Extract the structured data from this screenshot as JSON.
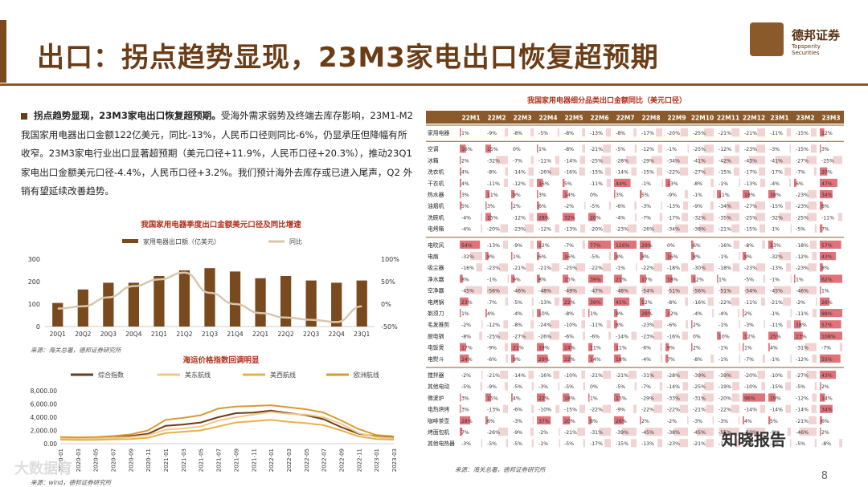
{
  "title": "出口：拐点趋势显现，23M3家电出口恢复超预期",
  "logo": {
    "name": "德邦证券",
    "sub": "Topsperity Securities"
  },
  "paragraph": {
    "lead": "拐点趋势显现，23M3家电出口恢复超预期。",
    "body": "受海外需求弱势及终端去库存影响，23M1-M2 我国家用电器出口金额122亿美元，同比-13%，人民币口径则同比-6%，仍显承压但降幅有所收窄。23M3家电行业出口显著超预期（美元口径+11.9%，人民币口径+20.3%），推动23Q1家电出口金额美元口径-4.4%，人民币口径+3.2%。我们预计海外去库存或已进入尾声，Q2 外销有望延续改善趋势。"
  },
  "chart1": {
    "title": "我国家用电器季度出口金额美元口径及同比增速",
    "legend": [
      "家用电器出口额（亿美元）",
      "同比"
    ],
    "source": "来源：海关总署，德邦证券研究所"
  },
  "chart_data": [
    {
      "type": "bar",
      "title": "我国家用电器季度出口金额美元口径及同比增速",
      "categories": [
        "20Q1",
        "20Q2",
        "20Q3",
        "20Q4",
        "21Q1",
        "21Q2",
        "21Q3",
        "21Q4",
        "22Q1",
        "22Q2",
        "22Q3",
        "22Q4",
        "23Q1"
      ],
      "series": [
        {
          "name": "家用电器出口额（亿美元）",
          "type": "bar",
          "values": [
            105,
            165,
            195,
            195,
            225,
            250,
            260,
            245,
            215,
            225,
            205,
            195,
            205
          ]
        },
        {
          "name": "同比",
          "type": "line",
          "axis": "right",
          "values": [
            -10,
            -5,
            15,
            40,
            55,
            70,
            25,
            0,
            -20,
            -30,
            -35,
            -40,
            -5
          ]
        }
      ],
      "ylim": [
        0,
        300
      ],
      "y2lim": [
        -50,
        100
      ],
      "yticks": [
        "0",
        "50",
        "100",
        "150",
        "200",
        "250",
        "300"
      ],
      "y2ticks": [
        "-50%",
        "0%",
        "50%",
        "100%"
      ]
    },
    {
      "type": "line",
      "title": "海运价格指数回调明显",
      "x": [
        "2020-01",
        "2020-03",
        "2020-05",
        "2020-07",
        "2020-09",
        "2020-11",
        "2021-01",
        "2021-03",
        "2021-05",
        "2021-07",
        "2021-09",
        "2021-11",
        "2022-01",
        "2022-03",
        "2022-05",
        "2022-07",
        "2022-09",
        "2022-11",
        "2023-01",
        "2023-03"
      ],
      "series": [
        {
          "name": "综合指数",
          "values": [
            900,
            850,
            900,
            1000,
            1150,
            1500,
            2700,
            2900,
            3200,
            4000,
            4600,
            4700,
            5000,
            4600,
            4300,
            3700,
            2500,
            1500,
            1100,
            950
          ]
        },
        {
          "name": "美东航线",
          "values": [
            800,
            750,
            800,
            900,
            1000,
            1300,
            2100,
            2300,
            2600,
            3500,
            4000,
            4400,
            4800,
            4500,
            4400,
            4000,
            3000,
            1600,
            1000,
            800
          ]
        },
        {
          "name": "美西航线",
          "values": [
            600,
            560,
            580,
            650,
            700,
            900,
            1600,
            1800,
            2000,
            2600,
            3200,
            3400,
            3600,
            3300,
            3100,
            2800,
            2000,
            1100,
            700,
            600
          ]
        },
        {
          "name": "欧洲航线",
          "values": [
            1000,
            950,
            1000,
            1150,
            1400,
            2000,
            3600,
            3900,
            4300,
            5300,
            5600,
            5700,
            5800,
            5500,
            5200,
            4700,
            3500,
            2200,
            1300,
            1100
          ]
        }
      ],
      "ylim": [
        0,
        8000
      ],
      "yticks": [
        "0.00",
        "1,000.00",
        "2,000.00",
        "3,000.00",
        "4,000.00",
        "5,000.00",
        "6,000.00",
        "7,000.00",
        "8,000.00"
      ],
      "source": "来源：wind，德邦证券研究所"
    }
  ],
  "chart2": {
    "title": "海运价格指数回调明显",
    "legend": [
      "综合指数",
      "美东航线",
      "美西航线",
      "欧洲航线"
    ],
    "xticks": [
      "2020-01",
      "2020-03",
      "2020-05",
      "2020-07",
      "2020-09",
      "2020-11",
      "2021-01",
      "2021-03",
      "2021-05",
      "2021-07",
      "2021-09",
      "2021-11",
      "2022-01",
      "2022-03",
      "2022-05",
      "2022-07",
      "2022-09",
      "2022-11",
      "2023-01",
      "2023-03"
    ],
    "source": "来源：wind，德邦证券研究所"
  },
  "table": {
    "title": "我国家用电器细分品类出口金额同比（美元口径）",
    "columns": [
      "22M1",
      "22M2",
      "22M3",
      "22M4",
      "22M5",
      "22M6",
      "22M7",
      "22M8",
      "22M9",
      "22M10",
      "22M11",
      "22M12",
      "23M1",
      "23M2",
      "23M3"
    ],
    "groups": [
      {
        "rows": [
          {
            "label": "家用电器",
            "values": [
              "1%",
              "-9%",
              "-8%",
              "-5%",
              "-8%",
              "-13%",
              "-8%",
              "-17%",
              "-20%",
              "-25%",
              "-21%",
              "-21%",
              "-11%",
              "-15%",
              "12%"
            ]
          }
        ]
      },
      {
        "rows": [
          {
            "label": "空调",
            "values": [
              "16%",
              "15%",
              "0%",
              "1%",
              "-8%",
              "-21%",
              "-5%",
              "-12%",
              "-1%",
              "-25%",
              "-12%",
              "-23%",
              "-3%",
              "-15%",
              "3%"
            ]
          },
          {
            "label": "冰箱",
            "values": [
              "2%",
              "-32%",
              "-7%",
              "-11%",
              "-14%",
              "-25%",
              "-28%",
              "-29%",
              "-34%",
              "-41%",
              "-42%",
              "-43%",
              "-41%",
              "-27%",
              "-25%"
            ]
          },
          {
            "label": "洗衣机",
            "values": [
              "4%",
              "-8%",
              "-14%",
              "-26%",
              "-16%",
              "-15%",
              "-14%",
              "-15%",
              "-22%",
              "-27%",
              "-15%",
              "-17%",
              "-17%",
              "-7%",
              "20%"
            ]
          },
          {
            "label": "干衣机",
            "values": [
              "4%",
              "-11%",
              "-12%",
              "16%",
              "5%",
              "-11%",
              "44%",
              "-1%",
              "13%",
              "-8%",
              "-1%",
              "-13%",
              "-4%",
              "6%",
              "47%"
            ]
          },
          {
            "label": "热水器",
            "values": [
              "3%",
              "11%",
              "9%",
              "3%",
              "14%",
              "0%",
              "3%",
              "5%",
              "-9%",
              "-1%",
              "11%",
              "18%",
              "18%",
              "-23%",
              "34%"
            ]
          },
          {
            "label": "油烟机",
            "values": [
              "5%",
              "3%",
              "2%",
              "6%",
              "-2%",
              "-5%",
              "-6%",
              "-3%",
              "-13%",
              "-9%",
              "-34%",
              "-27%",
              "-15%",
              "-23%",
              "8%"
            ]
          },
          {
            "label": "洗碗机",
            "values": [
              "-4%",
              "15%",
              "-12%",
              "28%",
              "32%",
              "20%",
              "-4%",
              "-7%",
              "-17%",
              "-32%",
              "-35%",
              "-25%",
              "-32%",
              "-25%",
              "-11%"
            ]
          },
          {
            "label": "电烤箱",
            "values": [
              "-4%",
              "-20%",
              "-23%",
              "-12%",
              "-13%",
              "-20%",
              "-23%",
              "-26%",
              "-34%",
              "-38%",
              "-21%",
              "-15%",
              "-1%",
              "-5%",
              "7%"
            ]
          }
        ]
      },
      {
        "rows": [
          {
            "label": "电吹风",
            "values": [
              "54%",
              "-13%",
              "-9%",
              "12%",
              "-7%",
              "77%",
              "126%",
              "29%",
              "0%",
              "6%",
              "-16%",
              "-8%",
              "13%",
              "-18%",
              "57%"
            ]
          },
          {
            "label": "电扇",
            "values": [
              "-32%",
              "8%",
              "1%",
              "6%",
              "16%",
              "-5%",
              "8%",
              "8%",
              "16%",
              "8%",
              "-1%",
              "9%",
              "-32%",
              "-12%",
              "43%"
            ]
          },
          {
            "label": "吸尘器",
            "values": [
              "-16%",
              "-23%",
              "-21%",
              "-21%",
              "-25%",
              "-22%",
              "-1%",
              "-22%",
              "-18%",
              "-30%",
              "-18%",
              "-23%",
              "-13%",
              "-23%",
              "8%"
            ]
          },
          {
            "label": "净水器",
            "values": [
              "8%",
              "-1%",
              "9%",
              "8%",
              "15%",
              "39%",
              "21%",
              "17%",
              "18%",
              "12%",
              "1%",
              "-5%",
              "-1%",
              "1%",
              "62%"
            ]
          },
          {
            "label": "空净器",
            "values": [
              "-45%",
              "-56%",
              "-46%",
              "-48%",
              "-49%",
              "-47%",
              "-48%",
              "-54%",
              "-51%",
              "-56%",
              "-51%",
              "-54%",
              "-45%",
              "-46%",
              "1%"
            ]
          },
          {
            "label": "电烤锅",
            "values": [
              "23%",
              "-7%",
              "-5%",
              "-13%",
              "22%",
              "39%",
              "41%",
              "12%",
              "-8%",
              "-16%",
              "-22%",
              "-11%",
              "-21%",
              "-2%",
              "26%"
            ]
          },
          {
            "label": "剃须刀",
            "values": [
              "1%",
              "4%",
              "-4%",
              "10%",
              "-8%",
              "1%",
              "9%",
              "28%",
              "12%",
              "-4%",
              "-4%",
              "2%",
              "-1%",
              "-11%",
              "88%"
            ]
          },
          {
            "label": "毛发推剪",
            "values": [
              "-2%",
              "-12%",
              "-8%",
              "-24%",
              "-10%",
              "-11%",
              "8%",
              "-23%",
              "-6%",
              "2%",
              "-1%",
              "-3%",
              "-11%",
              "18%",
              "57%"
            ]
          },
          {
            "label": "厨电锅",
            "values": [
              "-8%",
              "-25%",
              "-27%",
              "-26%",
              "-6%",
              "-6%",
              "-14%",
              "-23%",
              "-16%",
              "0%",
              "10%",
              "12%",
              "25%",
              "23%",
              "108%"
            ]
          },
          {
            "label": "电饭煲",
            "values": [
              "17%",
              "-9%",
              "21%",
              "19%",
              "24%",
              "11%",
              "11%",
              "-6%",
              "9%",
              "2%",
              "-1%",
              "1%",
              "4%",
              "-31%",
              "-7%"
            ]
          },
          {
            "label": "电熨斗",
            "values": [
              "24%",
              "-6%",
              "9%",
              "29%",
              "22%",
              "14%",
              "18%",
              "-4%",
              "7%",
              "-8%",
              "-1%",
              "-7%",
              "-1%",
              "-12%",
              "55%"
            ]
          }
        ]
      },
      {
        "rows": [
          {
            "label": "搅拌器",
            "values": [
              "-2%",
              "-21%",
              "-14%",
              "-16%",
              "-10%",
              "-21%",
              "-21%",
              "-31%",
              "-28%",
              "-39%",
              "-39%",
              "-20%",
              "-10%",
              "-27%",
              "43%"
            ]
          },
          {
            "label": "其他电动",
            "values": [
              "-5%",
              "-9%",
              "-5%",
              "-3%",
              "-5%",
              "0%",
              "-5%",
              "-7%",
              "-14%",
              "-25%",
              "-19%",
              "-10%",
              "-15%",
              "-5%",
              "2%"
            ]
          },
          {
            "label": "微波炉",
            "values": [
              "3%",
              "15%",
              "4%",
              "22%",
              "18%",
              "1%",
              "15%",
              "-29%",
              "-33%",
              "-31%",
              "-20%",
              "96%",
              "19%",
              "-12%",
              "14%"
            ]
          },
          {
            "label": "电热烘烤",
            "values": [
              "3%",
              "-13%",
              "-6%",
              "-10%",
              "-15%",
              "-22%",
              "-9%",
              "-22%",
              "-22%",
              "-21%",
              "-22%",
              "-14%",
              "-14%",
              "-14%",
              "34%"
            ]
          },
          {
            "label": "咖啡茶壶",
            "values": [
              "28%",
              "6%",
              "-3%",
              "37%",
              "20%",
              "8%",
              "26%",
              "2%",
              "-2%",
              "-3%",
              "-3%",
              "4%",
              "5%",
              "-21%",
              "6%"
            ]
          },
          {
            "label": "烤面包机",
            "values": [
              "7%",
              "-26%",
              "-9%",
              "-2%",
              "-21%",
              "-31%",
              "-39%",
              "-45%",
              "-38%",
              "-45%",
              "-55%",
              "-50%",
              "-9%",
              "-46%",
              "2%"
            ]
          },
          {
            "label": "其他电热器",
            "values": [
              "-3%",
              "-5%",
              "-5%",
              "-1%",
              "-5%",
              "-17%",
              "-15%",
              "-13%",
              "-23%",
              "-21%",
              "-11%",
              "-5%",
              "-2%",
              "-5%",
              "-8%"
            ]
          }
        ]
      }
    ],
    "source": "来源：海关总署，德邦证券研究所"
  },
  "page_number": "8",
  "watermark": "知晓报告",
  "watermark2": "大数据育"
}
